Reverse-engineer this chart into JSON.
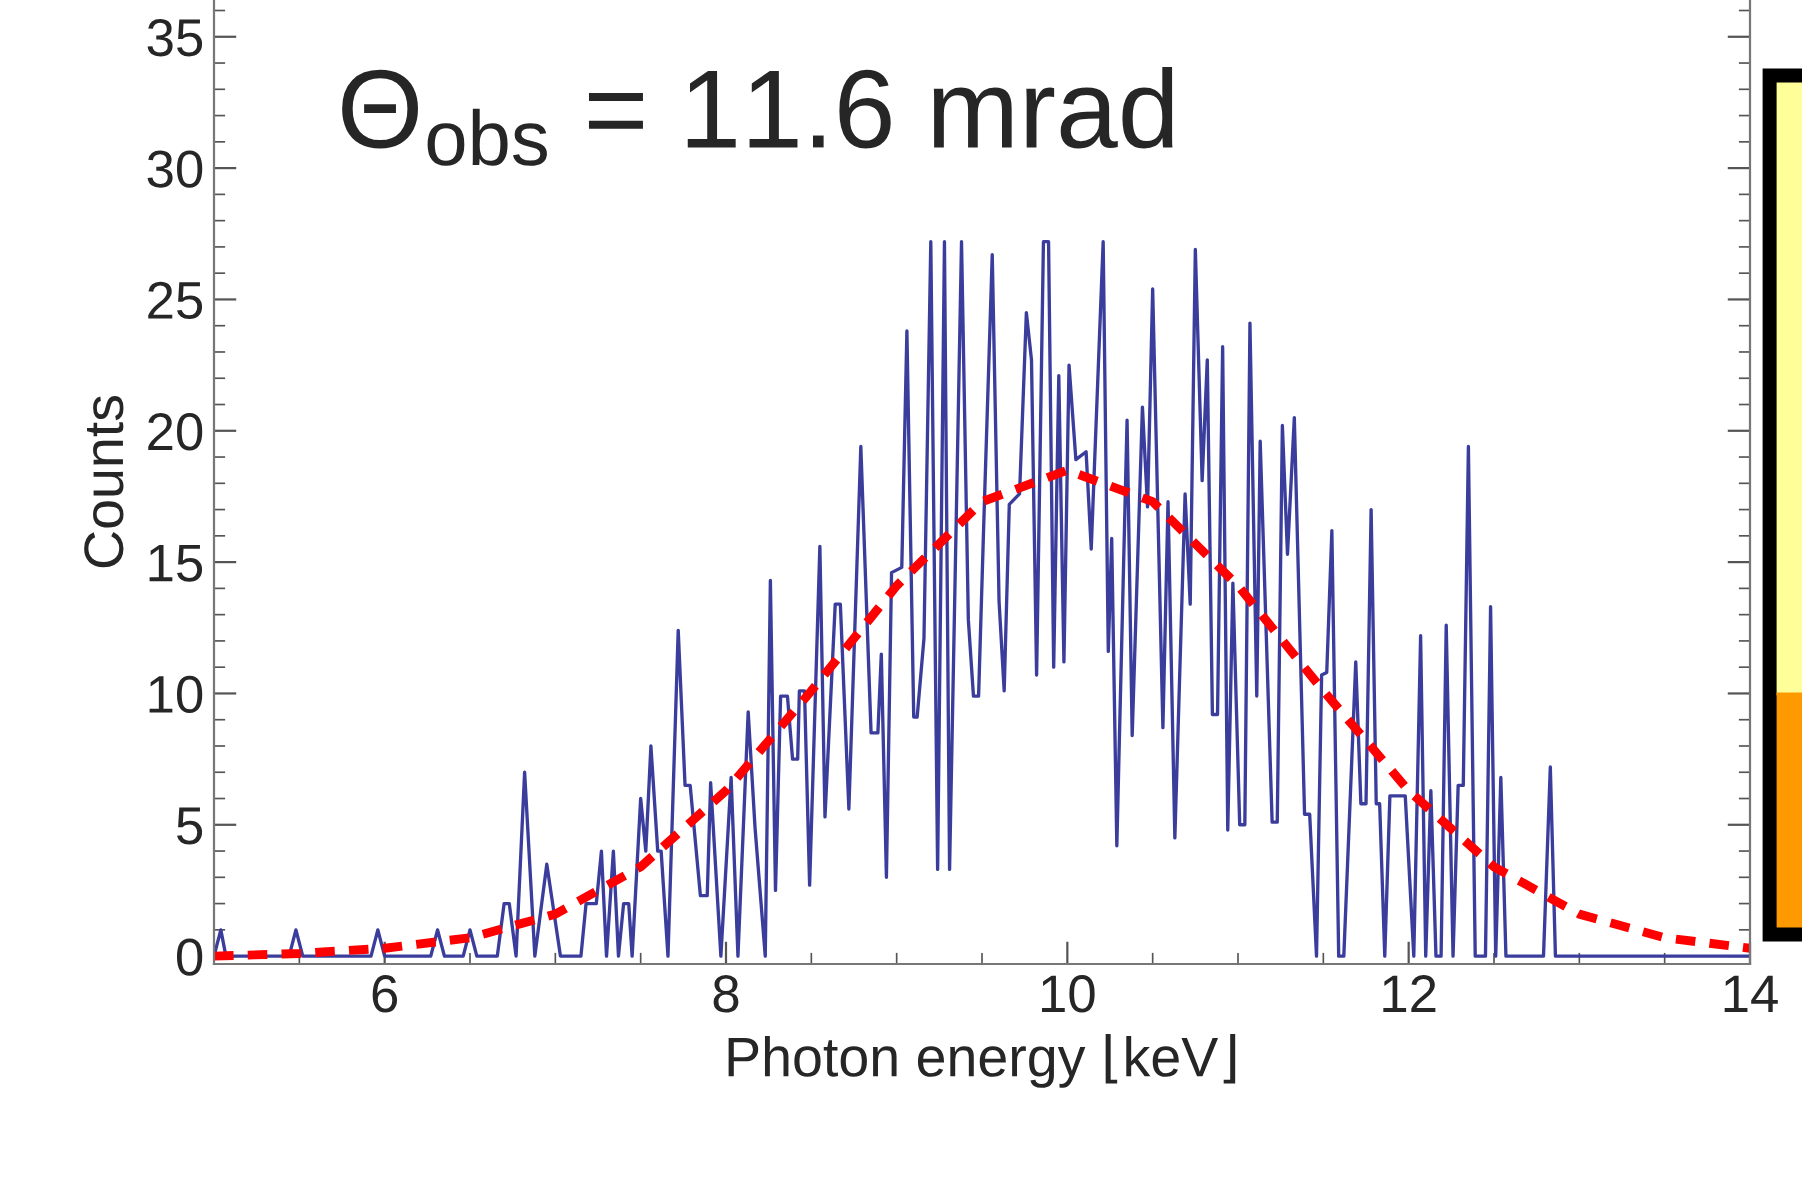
{
  "chart_data": {
    "type": "line",
    "xlabel": "Photon energy ⌊keV⌋",
    "ylabel": "Counts",
    "annotations": [
      "Θ$_{obs}$ = 11.6 mrad"
    ],
    "xlim": [
      5,
      14
    ],
    "ylim": [
      -0.3,
      36.4
    ],
    "xticks": [
      6,
      8,
      10,
      12,
      14
    ],
    "yticks": [
      0,
      5,
      10,
      15,
      20,
      25,
      30,
      35
    ],
    "grid": false,
    "legend": false,
    "marker": "none",
    "series": [
      {
        "color": "#3a3d9c",
        "line_style": "solid",
        "x": [
          5.0,
          5.04,
          5.07,
          5.1,
          5.44,
          5.48,
          5.52,
          5.92,
          5.96,
          6.0,
          6.27,
          6.31,
          6.35,
          6.46,
          6.5,
          6.54,
          6.66,
          6.7,
          6.73,
          6.77,
          6.82,
          6.88,
          6.95,
          7.03,
          7.15,
          7.18,
          7.24,
          7.27,
          7.3,
          7.34,
          7.37,
          7.4,
          7.43,
          7.45,
          7.5,
          7.53,
          7.56,
          7.6,
          7.62,
          7.66,
          7.72,
          7.76,
          7.79,
          7.85,
          7.89,
          7.91,
          7.97,
          8.03,
          8.07,
          8.13,
          8.17,
          8.23,
          8.26,
          8.29,
          8.32,
          8.36,
          8.39,
          8.42,
          8.43,
          8.46,
          8.49,
          8.55,
          8.58,
          8.64,
          8.67,
          8.72,
          8.79,
          8.85,
          8.89,
          8.91,
          8.94,
          8.97,
          9.03,
          9.06,
          9.1,
          9.12,
          9.16,
          9.2,
          9.24,
          9.28,
          9.31,
          9.38,
          9.42,
          9.45,
          9.48,
          9.51,
          9.56,
          9.6,
          9.63,
          9.66,
          9.72,
          9.76,
          9.79,
          9.82,
          9.86,
          9.89,
          9.92,
          9.95,
          9.98,
          10.01,
          10.05,
          10.11,
          10.14,
          10.21,
          10.24,
          10.26,
          10.29,
          10.35,
          10.38,
          10.44,
          10.47,
          10.5,
          10.56,
          10.59,
          10.63,
          10.69,
          10.72,
          10.75,
          10.79,
          10.82,
          10.85,
          10.88,
          10.91,
          10.94,
          10.97,
          11.01,
          11.04,
          11.07,
          11.11,
          11.13,
          11.2,
          11.23,
          11.26,
          11.29,
          11.33,
          11.39,
          11.42,
          11.46,
          11.49,
          11.52,
          11.55,
          11.59,
          11.62,
          11.69,
          11.72,
          11.75,
          11.78,
          11.81,
          11.83,
          11.86,
          11.89,
          11.98,
          12.03,
          12.07,
          12.1,
          12.13,
          12.16,
          12.19,
          12.22,
          12.26,
          12.29,
          12.32,
          12.35,
          12.39,
          12.45,
          12.48,
          12.51,
          12.54,
          12.57,
          12.79,
          12.83,
          12.86,
          14.0
        ],
        "values": [
          0,
          1,
          0,
          0,
          0,
          1,
          0,
          0,
          1,
          0,
          0,
          1,
          0,
          0,
          1,
          0,
          0,
          2,
          2,
          0,
          7,
          0,
          3.5,
          0,
          0,
          2,
          2,
          4,
          0,
          4,
          0,
          2,
          2,
          0,
          6,
          4,
          8,
          4,
          4,
          0,
          12.4,
          6.5,
          6.5,
          2.3,
          2.3,
          6.6,
          0,
          6.8,
          0,
          9.3,
          4.9,
          0,
          14.3,
          2.5,
          9.9,
          9.9,
          7.5,
          7.5,
          10.1,
          10.1,
          2.7,
          15.6,
          5.3,
          13.4,
          13.4,
          5.6,
          19.4,
          8.5,
          8.5,
          11.5,
          3.0,
          14.6,
          14.8,
          23.8,
          9.1,
          9.1,
          12.1,
          27.2,
          3.3,
          27.2,
          3.3,
          27.2,
          12.8,
          9.9,
          9.9,
          16.4,
          26.7,
          13.5,
          10.1,
          17.2,
          17.6,
          24.5,
          22.7,
          10.7,
          27.2,
          27.2,
          11.0,
          22.1,
          11.2,
          22.5,
          18.9,
          19.2,
          15.5,
          27.2,
          11.6,
          15.9,
          4.2,
          20.4,
          8.4,
          20.9,
          17.1,
          25.4,
          8.7,
          17.3,
          4.5,
          17.6,
          13.4,
          26.9,
          18.1,
          22.7,
          9.2,
          9.2,
          23.2,
          4.8,
          14.2,
          5.0,
          5.0,
          24.1,
          9.9,
          19.6,
          5.1,
          5.1,
          20.2,
          15.3,
          20.5,
          5.4,
          5.4,
          0,
          10.7,
          10.8,
          16.2,
          0,
          0,
          11.2,
          5.8,
          5.8,
          17.0,
          5.8,
          5.8,
          0,
          6.1,
          6.1,
          0,
          12.2,
          0,
          6.3,
          0,
          0,
          12.6,
          0,
          6.5,
          6.5,
          19.4,
          0,
          0,
          13.3,
          0,
          6.8,
          0,
          0,
          7.2,
          0,
          0
        ]
      },
      {
        "color": "#ff0000",
        "line_style": "dashed",
        "x": [
          5,
          5.5,
          6,
          6.5,
          7,
          7.5,
          8,
          8.5,
          9,
          9.5,
          10,
          10.5,
          11,
          11.5,
          12,
          12.5,
          13,
          13.5,
          14
        ],
        "values": [
          0.0,
          0.1,
          0.3,
          0.7,
          1.6,
          3.4,
          6.3,
          10.1,
          14.1,
          17.3,
          18.5,
          17.3,
          14.1,
          10.1,
          6.3,
          3.4,
          1.6,
          0.7,
          0.3
        ]
      }
    ]
  }
}
